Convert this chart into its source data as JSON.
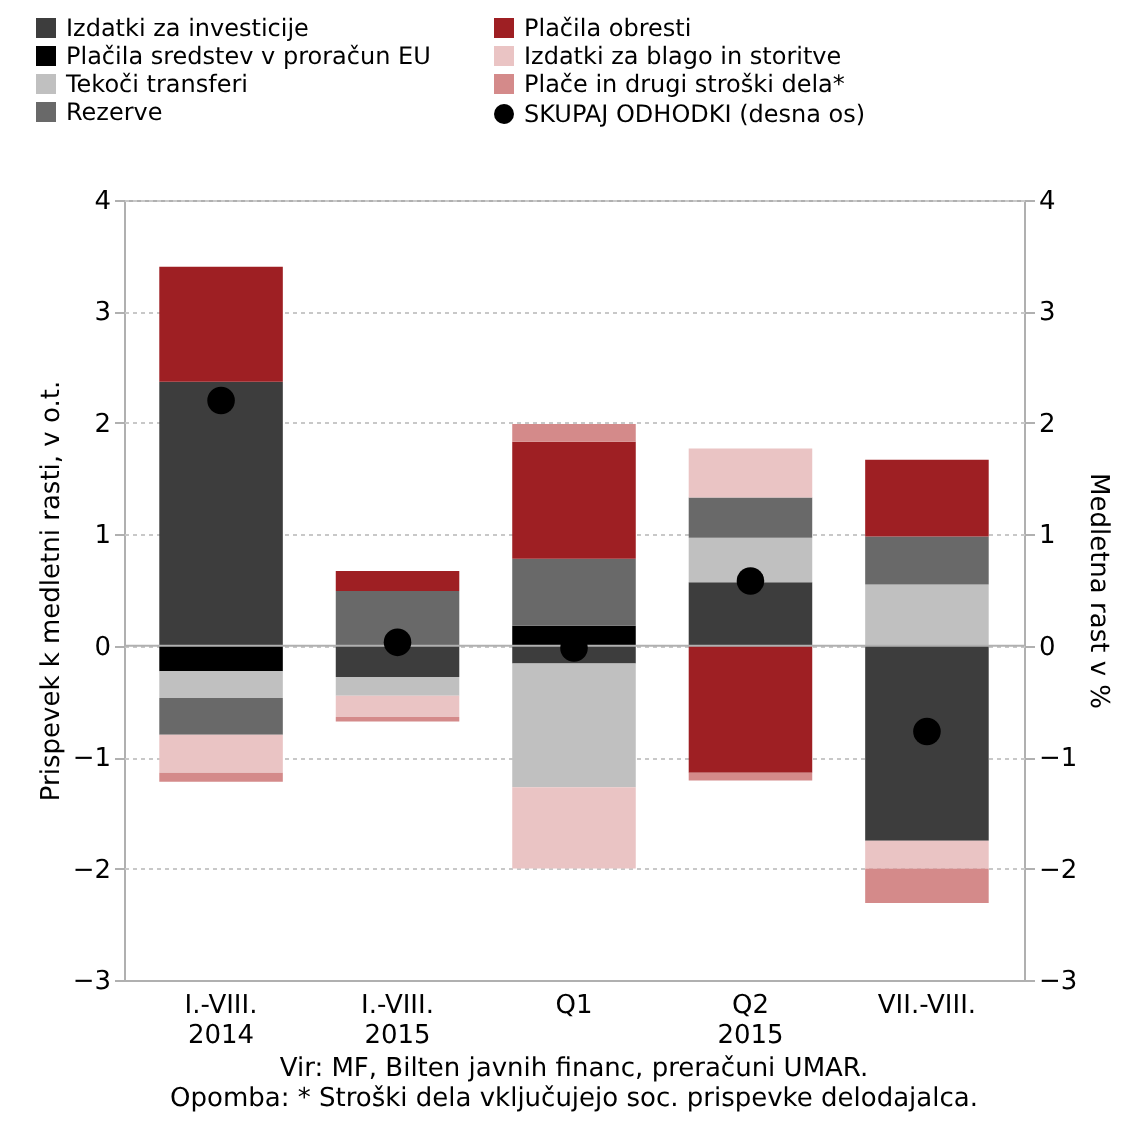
{
  "chart_data": {
    "type": "bar",
    "stacked": true,
    "categories": [
      "I.-VIII.\n2014",
      "I.-VIII.\n2015",
      "Q1",
      "Q2\n2015",
      "VII.-VIII."
    ],
    "series": [
      {
        "name": "Izdatki za investicije",
        "color": "#3d3d3d",
        "values": [
          2.37,
          -0.28,
          -0.16,
          0.57,
          -1.75
        ]
      },
      {
        "name": "Plačila sredstev v proračun EU",
        "color": "#000000",
        "values": [
          -0.23,
          null,
          0.18,
          null,
          null
        ]
      },
      {
        "name": "Tekoči transferi",
        "color": "#c0c0c0",
        "values": [
          -0.24,
          -0.17,
          -1.11,
          0.4,
          0.55
        ]
      },
      {
        "name": "Rezerve",
        "color": "#696969",
        "values": [
          -0.33,
          0.49,
          0.6,
          0.36,
          0.43
        ]
      },
      {
        "name": "Plačila obresti",
        "color": "#9e1f23",
        "values": [
          1.03,
          0.18,
          1.05,
          -1.14,
          0.69
        ]
      },
      {
        "name": "Izdatki za blago in storitve",
        "color": "#eac4c4",
        "values": [
          -0.34,
          -0.19,
          -0.73,
          0.44,
          -0.25
        ]
      },
      {
        "name": "Plače in drugi stroški dela*",
        "color": "#d48a8a",
        "values": [
          -0.08,
          -0.04,
          0.16,
          -0.07,
          -0.31
        ]
      },
      {
        "name": "SKUPAJ ODHODKI (desna os)",
        "type": "scatter",
        "axis": "y2",
        "color": "#000000",
        "marker": "circle",
        "values": [
          2.2,
          0.03,
          -0.02,
          0.58,
          -0.77
        ]
      }
    ],
    "ylim": [
      -3,
      4
    ],
    "yticks": [
      -3,
      -2,
      -1,
      0,
      1,
      2,
      3,
      4
    ],
    "y2lim": [
      -3,
      4
    ],
    "y2ticks": [
      -3,
      -2,
      -1,
      0,
      1,
      2,
      3,
      4
    ],
    "ylabel": "Prispevek k medletni rasti, v o.t.",
    "y2label": "Medletna rast v %",
    "grid": "y",
    "legend": "top",
    "ref_lines": [
      {
        "axis": "y",
        "value": 0,
        "color": "#b0b0b0",
        "line_style": "solid"
      }
    ],
    "annotations": [
      "Vir: MF, Bilten javnih financ, preračuni UMAR.",
      "Opomba: * Stroški dela vključujejo soc. prispevke delodajalca."
    ]
  }
}
